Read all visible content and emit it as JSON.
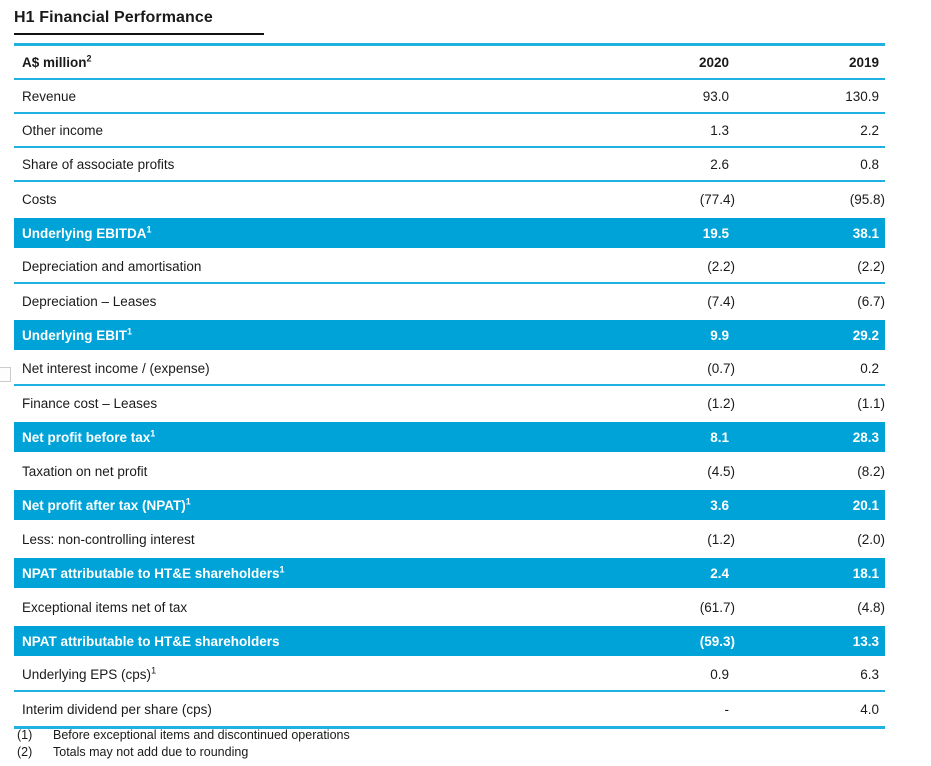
{
  "page": {
    "title": "H1 Financial Performance"
  },
  "colors": {
    "highlight_bar": "#00a3d8",
    "rule_lines": "#1fb1e0",
    "title_underline": "#111111",
    "text": "#1a1a1a",
    "highlight_text": "#ffffff"
  },
  "table": {
    "unit_label": "A$ million",
    "unit_superscript": "2",
    "columns": [
      "2020",
      "2019"
    ],
    "rows": [
      {
        "label": "Revenue",
        "sup": "",
        "v2020": "93.0",
        "v2019": "130.9",
        "highlight": false,
        "divider": true
      },
      {
        "label": "Other income",
        "sup": "",
        "v2020": "1.3",
        "v2019": "2.2",
        "highlight": false,
        "divider": true
      },
      {
        "label": "Share of associate profits",
        "sup": "",
        "v2020": "2.6",
        "v2019": "0.8",
        "highlight": false,
        "divider": true
      },
      {
        "label": "Costs",
        "sup": "",
        "v2020": "(77.4)",
        "v2019": "(95.8)",
        "highlight": false,
        "divider": false
      },
      {
        "label": "Underlying EBITDA",
        "sup": "1",
        "v2020": "19.5",
        "v2019": "38.1",
        "highlight": true,
        "divider": false
      },
      {
        "label": "Depreciation and amortisation",
        "sup": "",
        "v2020": "(2.2)",
        "v2019": "(2.2)",
        "highlight": false,
        "divider": true
      },
      {
        "label": "Depreciation – Leases",
        "sup": "",
        "v2020": "(7.4)",
        "v2019": "(6.7)",
        "highlight": false,
        "divider": false
      },
      {
        "label": "Underlying EBIT",
        "sup": "1",
        "v2020": "9.9",
        "v2019": "29.2",
        "highlight": true,
        "divider": false
      },
      {
        "label": "Net interest income / (expense)",
        "sup": "",
        "v2020": "(0.7)",
        "v2019": "0.2",
        "highlight": false,
        "divider": true
      },
      {
        "label": "Finance cost – Leases",
        "sup": "",
        "v2020": "(1.2)",
        "v2019": "(1.1)",
        "highlight": false,
        "divider": false
      },
      {
        "label": "Net profit before tax",
        "sup": "1",
        "v2020": "8.1",
        "v2019": "28.3",
        "highlight": true,
        "divider": false
      },
      {
        "label": "Taxation on net profit",
        "sup": "",
        "v2020": "(4.5)",
        "v2019": "(8.2)",
        "highlight": false,
        "divider": false
      },
      {
        "label": "Net profit after tax (NPAT)",
        "sup": "1",
        "v2020": "3.6",
        "v2019": "20.1",
        "highlight": true,
        "divider": false
      },
      {
        "label": "Less: non-controlling interest",
        "sup": "",
        "v2020": "(1.2)",
        "v2019": "(2.0)",
        "highlight": false,
        "divider": false
      },
      {
        "label": "NPAT attributable to HT&E shareholders",
        "sup": "1",
        "v2020": "2.4",
        "v2019": "18.1",
        "highlight": true,
        "divider": false
      },
      {
        "label": "Exceptional items net of tax",
        "sup": "",
        "v2020": "(61.7)",
        "v2019": "(4.8)",
        "highlight": false,
        "divider": false
      },
      {
        "label": "NPAT attributable to HT&E shareholders",
        "sup": "",
        "v2020": "(59.3)",
        "v2019": "13.3",
        "highlight": true,
        "divider": false
      },
      {
        "label": "Underlying EPS (cps)",
        "sup": "1",
        "v2020": "0.9",
        "v2019": "6.3",
        "highlight": false,
        "divider": true
      },
      {
        "label": "Interim dividend per share (cps)",
        "sup": "",
        "v2020": "-",
        "v2019": "4.0",
        "highlight": false,
        "divider": false
      }
    ]
  },
  "footnotes": [
    {
      "marker": "(1)",
      "text": "Before exceptional items and discontinued operations"
    },
    {
      "marker": "(2)",
      "text": "Totals may not add due to rounding"
    }
  ]
}
